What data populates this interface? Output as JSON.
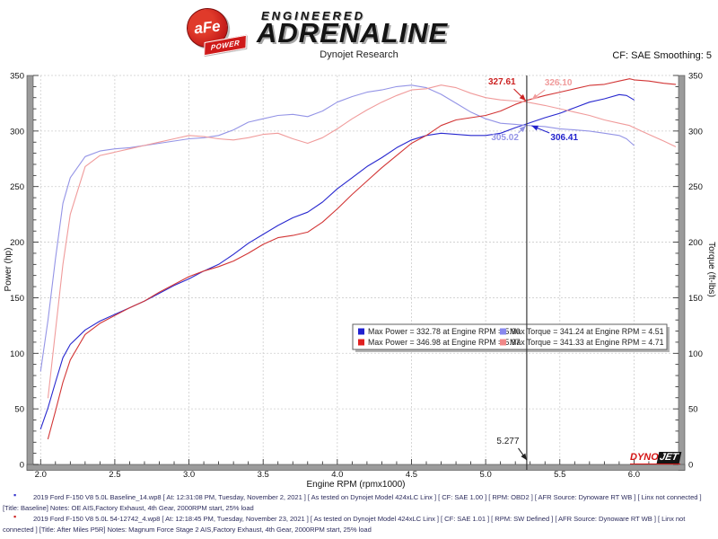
{
  "header": {
    "logo": {
      "afe": "aFe",
      "power": "POWER",
      "line1": "ENGINEERED",
      "line2": "ADRENALINE"
    },
    "subtitle": "Dynojet Research",
    "smoothing": "CF: SAE Smoothing: 5"
  },
  "chart_data": {
    "type": "line",
    "xlabel": "Engine RPM (rpmx1000)",
    "ylabel_left": "Power (hp)",
    "ylabel_right": "Torque (ft-lbs)",
    "xlim": [
      1.95,
      6.3
    ],
    "ylim": [
      0,
      350
    ],
    "x_ticks": [
      2.0,
      2.5,
      3.0,
      3.5,
      4.0,
      4.5,
      5.0,
      5.5,
      6.0
    ],
    "y_ticks": [
      0,
      50,
      100,
      150,
      200,
      250,
      300,
      350
    ],
    "grid": true,
    "cursor_x": 5.277,
    "series": [
      {
        "name": "Baseline Power (hp)",
        "color": "#2828cf",
        "x": [
          2.0,
          2.05,
          2.1,
          2.15,
          2.2,
          2.3,
          2.4,
          2.5,
          2.6,
          2.7,
          2.8,
          2.9,
          3.0,
          3.1,
          3.2,
          3.3,
          3.4,
          3.5,
          3.6,
          3.7,
          3.8,
          3.9,
          4.0,
          4.1,
          4.2,
          4.3,
          4.4,
          4.5,
          4.6,
          4.7,
          4.8,
          4.9,
          5.0,
          5.1,
          5.2,
          5.277,
          5.4,
          5.5,
          5.6,
          5.7,
          5.8,
          5.9,
          5.95,
          6.0
        ],
        "y": [
          32,
          51,
          74,
          96,
          108,
          121,
          129,
          135,
          141,
          147,
          154,
          161,
          167,
          174,
          180,
          189,
          199,
          207,
          215,
          222,
          227,
          236,
          248,
          258,
          268,
          276,
          285,
          292,
          296,
          298,
          297,
          296,
          296,
          298,
          303,
          306.41,
          312,
          316,
          321,
          326,
          329,
          332.78,
          332,
          328
        ]
      },
      {
        "name": "Baseline Torque (ft-lbs)",
        "color": "#9494e6",
        "x": [
          2.0,
          2.05,
          2.1,
          2.15,
          2.2,
          2.3,
          2.4,
          2.5,
          2.6,
          2.7,
          2.8,
          2.9,
          3.0,
          3.1,
          3.2,
          3.3,
          3.4,
          3.5,
          3.6,
          3.7,
          3.8,
          3.9,
          4.0,
          4.1,
          4.2,
          4.3,
          4.4,
          4.5,
          4.6,
          4.7,
          4.8,
          4.9,
          5.0,
          5.1,
          5.2,
          5.277,
          5.4,
          5.5,
          5.6,
          5.7,
          5.8,
          5.9,
          5.95,
          6.0
        ],
        "y": [
          84,
          130,
          185,
          235,
          258,
          277,
          282,
          284,
          285,
          287,
          289,
          291,
          293,
          294,
          296,
          301,
          308,
          311,
          314,
          315,
          313,
          318,
          326,
          331,
          335,
          337,
          340,
          341.24,
          339,
          333,
          325,
          317,
          311,
          307,
          306,
          305.02,
          304,
          302,
          301,
          300,
          298,
          296,
          293,
          287
        ]
      },
      {
        "name": "After Power (hp)",
        "color": "#d23535",
        "x": [
          2.05,
          2.1,
          2.15,
          2.2,
          2.3,
          2.4,
          2.5,
          2.6,
          2.7,
          2.8,
          2.9,
          3.0,
          3.1,
          3.2,
          3.3,
          3.4,
          3.5,
          3.6,
          3.7,
          3.8,
          3.9,
          4.0,
          4.1,
          4.2,
          4.3,
          4.4,
          4.5,
          4.6,
          4.7,
          4.8,
          4.9,
          5.0,
          5.1,
          5.2,
          5.277,
          5.4,
          5.5,
          5.6,
          5.7,
          5.8,
          5.9,
          5.97,
          6.0,
          6.1,
          6.2,
          6.28
        ],
        "y": [
          23,
          48,
          74,
          94,
          117,
          127,
          134,
          141,
          147,
          155,
          162,
          169,
          174,
          178,
          183,
          190,
          198,
          204,
          206,
          209,
          218,
          230,
          243,
          255,
          267,
          278,
          289,
          296,
          305,
          310,
          312,
          314,
          318,
          324,
          327.61,
          332,
          335,
          338,
          341,
          342,
          345,
          346.98,
          346,
          345,
          343,
          342
        ]
      },
      {
        "name": "After Torque (ft-lbs)",
        "color": "#f09b9b",
        "x": [
          2.05,
          2.1,
          2.15,
          2.2,
          2.3,
          2.4,
          2.5,
          2.6,
          2.7,
          2.8,
          2.9,
          3.0,
          3.1,
          3.2,
          3.3,
          3.4,
          3.5,
          3.6,
          3.7,
          3.8,
          3.9,
          4.0,
          4.1,
          4.2,
          4.3,
          4.4,
          4.5,
          4.6,
          4.7,
          4.8,
          4.9,
          5.0,
          5.1,
          5.2,
          5.277,
          5.4,
          5.5,
          5.6,
          5.7,
          5.8,
          5.9,
          5.97,
          6.0,
          6.1,
          6.2,
          6.28
        ],
        "y": [
          60,
          120,
          180,
          225,
          268,
          278,
          281,
          284,
          287,
          290,
          293,
          296,
          295,
          293,
          292,
          294,
          297,
          298,
          293,
          289,
          294,
          302,
          311,
          319,
          326,
          332,
          337,
          338,
          341.33,
          339,
          334,
          330,
          328,
          327,
          326.1,
          323,
          320,
          317,
          314,
          310,
          307,
          305,
          303,
          297,
          291,
          286
        ]
      }
    ],
    "annotations": [
      {
        "text": "327.61",
        "color": "#cc2222",
        "label": [
          5.11,
          341.9
        ],
        "tail": [
          5.19,
          337.9
        ],
        "tip": [
          5.27,
          327.4
        ],
        "bold": true
      },
      {
        "text": "326.10",
        "color": "#f09b9b",
        "label": [
          5.49,
          341.1
        ],
        "tail": [
          5.4,
          337.1
        ],
        "tip": [
          5.31,
          328.2
        ],
        "bold": true
      },
      {
        "text": "305.02",
        "color": "#9494e6",
        "label": [
          5.13,
          291.8
        ],
        "tail": [
          5.22,
          298.3
        ],
        "tip": [
          5.27,
          304.7
        ],
        "bold": true
      },
      {
        "text": "306.41",
        "color": "#2222cc",
        "label": [
          5.53,
          291.8
        ],
        "tail": [
          5.43,
          298.3
        ],
        "tip": [
          5.31,
          304.7
        ],
        "bold": true
      },
      {
        "text": "5.277",
        "color": "#222222",
        "label": [
          5.15,
          18.6
        ],
        "tail": [
          5.22,
          14.6
        ],
        "tip": [
          5.277,
          4.0
        ],
        "bold": false
      }
    ],
    "legend": [
      {
        "swatch": "#2020d0",
        "label": "Max Power = 332.78 at Engine RPM = 5.90"
      },
      {
        "swatch": "#8888ee",
        "label": "Max Torque = 341.24 at Engine RPM = 4.51"
      },
      {
        "swatch": "#e02020",
        "label": "Max Power = 346.98 at Engine RPM = 5.97"
      },
      {
        "swatch": "#f08888",
        "label": "Max Torque = 341.33 at Engine RPM = 4.71"
      }
    ]
  },
  "dynojet_logo": {
    "part1": "DYNO",
    "part2": "JET"
  },
  "footer": {
    "runs": [
      {
        "bullet_color": "#3333cc",
        "text": "2019 Ford F-150 V8 5.0L Baseline_14.wp8 [ At: 12:31:08 PM, Tuesday, November 2, 2021 ] [ As tested on Dynojet Model 424xLC Linx ] [ CF: SAE 1.00 ] [ RPM: OBD2 ] [ AFR Source: Dynoware RT WB ] [ Linx not connected ] [Title: Baseline]  Notes: OE AIS,Factory Exhaust, 4th Gear, 2000RPM start, 25% load"
      },
      {
        "bullet_color": "#cc2222",
        "text": "2019 Ford F-150 V8 5.0L 54-12742_4.wp8 [ At: 12:18:45 PM, Tuesday, November 23, 2021 ] [ As tested on Dynojet Model 424xLC Linx ] [ CF: SAE 1.01 ] [ RPM: SW Defined ] [ AFR Source: Dynoware RT WB ] [ Linx not connected ] [Title: After Miles P5R]  Notes: Magnum Force Stage 2  AIS,Factory Exhaust, 4th Gear, 2000RPM start, 25% load"
      }
    ]
  }
}
